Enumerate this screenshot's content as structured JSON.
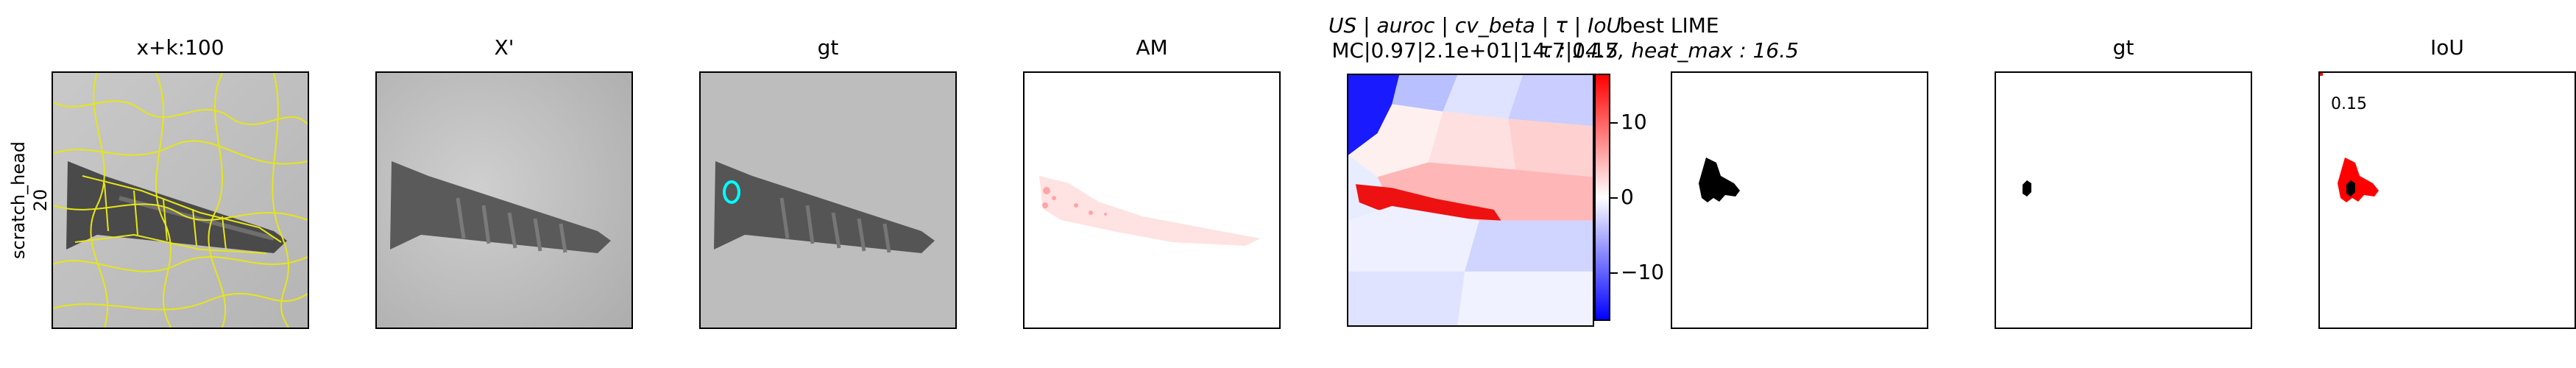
{
  "row_label": {
    "line1": "scratch_head",
    "line2": "20"
  },
  "panels": {
    "p1": {
      "title": "x+k:100"
    },
    "p2": {
      "title": "X'"
    },
    "p3": {
      "title": "gt"
    },
    "p4": {
      "title": "AM"
    },
    "p5": {
      "title_line1_parts": [
        "US",
        " | ",
        "auroc",
        " | ",
        "cv_beta",
        " | ",
        "τ",
        " | ",
        "IoU"
      ],
      "title_line2": "MC|0.97|2.1e+01|14.7|0.15"
    },
    "p6": {
      "title_line1": "best LIME",
      "title_line2": "τ : 14.7, heat_max : 16.5"
    },
    "p7": {
      "title": "gt"
    },
    "p8": {
      "title": "IoU",
      "value_label": "0.15"
    }
  },
  "colorbar": {
    "ticks": [
      "10",
      "0",
      "−10"
    ],
    "colors": {
      "high": "#ff0000",
      "mid": "#ffffff",
      "low": "#0000ff"
    }
  },
  "colors": {
    "superpixel_edges": "#e6e619",
    "gt_mask": "#00ffff",
    "lime_mask": "#000000",
    "iou_fp": "#ff0000"
  }
}
